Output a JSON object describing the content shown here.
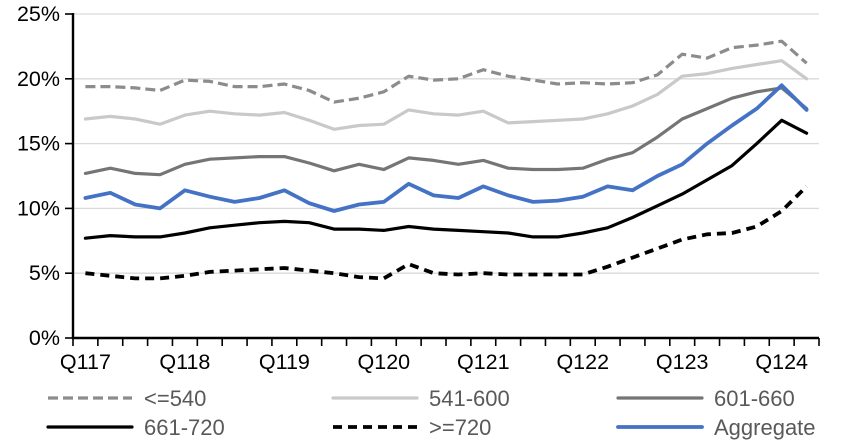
{
  "page": {
    "background": "#ffffff"
  },
  "chart_data": {
    "type": "line",
    "title": "",
    "xlabel": "",
    "ylabel": "",
    "ylim": [
      0,
      25
    ],
    "y_tick_values": [
      0,
      5,
      10,
      15,
      20,
      25
    ],
    "y_tick_labels": [
      "0%",
      "5%",
      "10%",
      "15%",
      "20%",
      "25%"
    ],
    "grid": "horizontal",
    "gridline_color": "#d9d9d9",
    "axis_color": "#000000",
    "axis_label_color": "#000000",
    "categories": [
      "Q117",
      "Q217",
      "Q317",
      "Q417",
      "Q118",
      "Q218",
      "Q318",
      "Q418",
      "Q119",
      "Q219",
      "Q319",
      "Q419",
      "Q120",
      "Q220",
      "Q320",
      "Q420",
      "Q121",
      "Q221",
      "Q321",
      "Q421",
      "Q122",
      "Q222",
      "Q322",
      "Q422",
      "Q123",
      "Q223",
      "Q323",
      "Q423",
      "Q124",
      "Q224"
    ],
    "x_axis_labels": [
      {
        "label": "Q117",
        "index": 0
      },
      {
        "label": "Q118",
        "index": 4
      },
      {
        "label": "Q119",
        "index": 8
      },
      {
        "label": "Q120",
        "index": 12
      },
      {
        "label": "Q121",
        "index": 16
      },
      {
        "label": "Q122",
        "index": 20
      },
      {
        "label": "Q123",
        "index": 24
      },
      {
        "label": "Q124",
        "index": 28
      }
    ],
    "series": [
      {
        "key": "le-540",
        "name": "<=540",
        "color": "#8c8c8c",
        "dash": "10 5",
        "width": 3.2,
        "values": [
          19.4,
          19.4,
          19.3,
          19.1,
          19.9,
          19.8,
          19.4,
          19.4,
          19.6,
          19.1,
          18.2,
          18.5,
          19.0,
          20.2,
          19.9,
          20.0,
          20.7,
          20.2,
          19.9,
          19.6,
          19.7,
          19.6,
          19.7,
          20.3,
          21.9,
          21.6,
          22.4,
          22.6,
          22.9,
          21.2
        ]
      },
      {
        "key": "541-600",
        "name": "541-600",
        "color": "#c9c9c9",
        "dash": null,
        "width": 3.2,
        "values": [
          16.9,
          17.1,
          16.9,
          16.5,
          17.2,
          17.5,
          17.3,
          17.2,
          17.4,
          16.8,
          16.1,
          16.4,
          16.5,
          17.6,
          17.3,
          17.2,
          17.5,
          16.6,
          16.7,
          16.8,
          16.9,
          17.3,
          17.9,
          18.8,
          20.2,
          20.4,
          20.8,
          21.1,
          21.4,
          20.0
        ]
      },
      {
        "key": "601-660",
        "name": "601-660",
        "color": "#757575",
        "dash": null,
        "width": 3.2,
        "values": [
          12.7,
          13.1,
          12.7,
          12.6,
          13.4,
          13.8,
          13.9,
          14.0,
          14.0,
          13.5,
          12.9,
          13.4,
          13.0,
          13.9,
          13.7,
          13.4,
          13.7,
          13.1,
          13.0,
          13.0,
          13.1,
          13.8,
          14.3,
          15.5,
          16.9,
          17.7,
          18.5,
          19.0,
          19.3,
          17.7
        ]
      },
      {
        "key": "661-720",
        "name": "661-720",
        "color": "#000000",
        "dash": null,
        "width": 3.2,
        "values": [
          7.7,
          7.9,
          7.8,
          7.8,
          8.1,
          8.5,
          8.7,
          8.9,
          9.0,
          8.9,
          8.4,
          8.4,
          8.3,
          8.6,
          8.4,
          8.3,
          8.2,
          8.1,
          7.8,
          7.8,
          8.1,
          8.5,
          9.3,
          10.2,
          11.1,
          12.2,
          13.3,
          15.0,
          16.8,
          15.8
        ]
      },
      {
        "key": "ge-720",
        "name": ">=720",
        "color": "#000000",
        "dash": "9 6",
        "width": 3.8,
        "values": [
          5.0,
          4.8,
          4.6,
          4.6,
          4.8,
          5.1,
          5.2,
          5.3,
          5.4,
          5.2,
          5.0,
          4.7,
          4.6,
          5.7,
          5.0,
          4.9,
          5.0,
          4.9,
          4.9,
          4.9,
          4.9,
          5.5,
          6.2,
          6.9,
          7.6,
          8.0,
          8.1,
          8.6,
          9.8,
          11.7
        ]
      },
      {
        "key": "aggregate",
        "name": "Aggregate",
        "color": "#4472c4",
        "dash": null,
        "width": 3.8,
        "values": [
          10.8,
          11.2,
          10.3,
          10.0,
          11.4,
          10.9,
          10.5,
          10.8,
          11.4,
          10.4,
          9.8,
          10.3,
          10.5,
          11.9,
          11.0,
          10.8,
          11.7,
          11.0,
          10.5,
          10.6,
          10.9,
          11.7,
          11.4,
          12.5,
          13.4,
          15.0,
          16.4,
          17.7,
          19.5,
          17.6
        ]
      }
    ],
    "legend": {
      "position": "bottom",
      "text_color": "#595959",
      "entries": [
        "<=540",
        "541-600",
        "601-660",
        "661-720",
        ">=720",
        "Aggregate"
      ]
    }
  }
}
